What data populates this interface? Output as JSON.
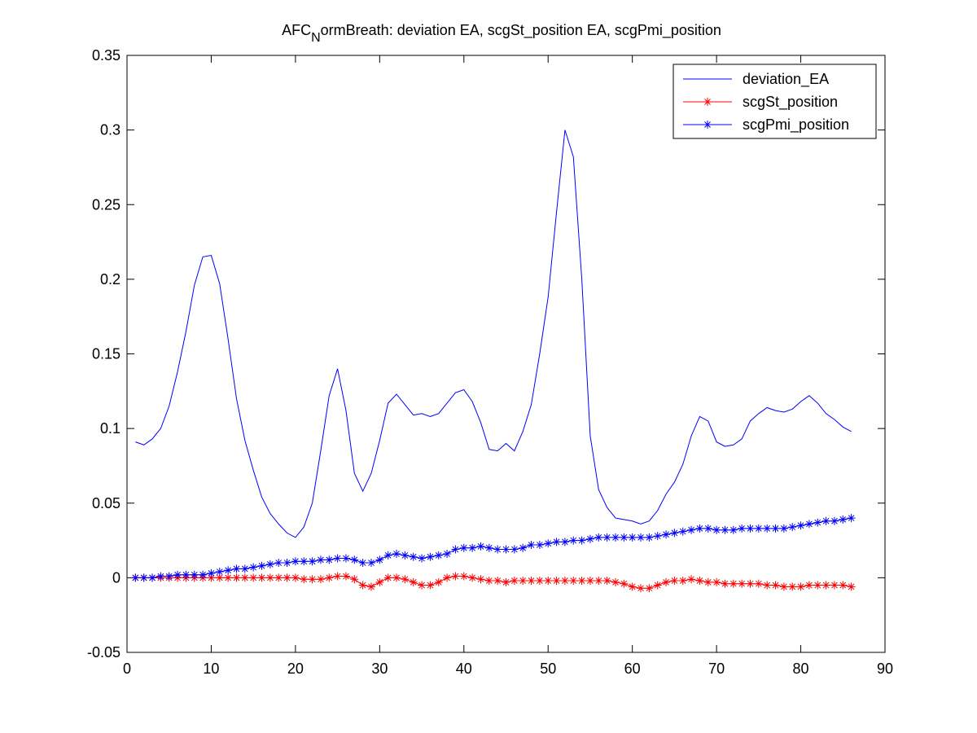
{
  "chart_data": {
    "type": "line",
    "title": [
      "AFC",
      "N",
      "ormBreath: deviation EA, scgSt_position EA, scgPmi_position"
    ],
    "x": [
      1,
      2,
      3,
      4,
      5,
      6,
      7,
      8,
      9,
      10,
      11,
      12,
      13,
      14,
      15,
      16,
      17,
      18,
      19,
      20,
      21,
      22,
      23,
      24,
      25,
      26,
      27,
      28,
      29,
      30,
      31,
      32,
      33,
      34,
      35,
      36,
      37,
      38,
      39,
      40,
      41,
      42,
      43,
      44,
      45,
      46,
      47,
      48,
      49,
      50,
      51,
      52,
      53,
      54,
      55,
      56,
      57,
      58,
      59,
      60,
      61,
      62,
      63,
      64,
      65,
      66,
      67,
      68,
      69,
      70,
      71,
      72,
      73,
      74,
      75,
      76,
      77,
      78,
      79,
      80,
      81,
      82,
      83,
      84,
      85,
      86
    ],
    "series": [
      {
        "name": "deviation_EA",
        "color": "#0000ff",
        "marker": "none",
        "values": [
          0.091,
          0.089,
          0.093,
          0.1,
          0.115,
          0.138,
          0.165,
          0.196,
          0.215,
          0.216,
          0.197,
          0.16,
          0.12,
          0.092,
          0.072,
          0.054,
          0.043,
          0.036,
          0.03,
          0.027,
          0.034,
          0.05,
          0.085,
          0.122,
          0.14,
          0.112,
          0.07,
          0.058,
          0.07,
          0.092,
          0.117,
          0.123,
          0.116,
          0.109,
          0.11,
          0.108,
          0.11,
          0.117,
          0.124,
          0.126,
          0.118,
          0.104,
          0.086,
          0.085,
          0.09,
          0.085,
          0.098,
          0.116,
          0.15,
          0.188,
          0.245,
          0.3,
          0.282,
          0.2,
          0.095,
          0.059,
          0.047,
          0.04,
          0.039,
          0.038,
          0.036,
          0.038,
          0.045,
          0.056,
          0.064,
          0.076,
          0.095,
          0.108,
          0.105,
          0.091,
          0.088,
          0.089,
          0.093,
          0.105,
          0.11,
          0.114,
          0.112,
          0.111,
          0.113,
          0.118,
          0.122,
          0.117,
          0.11,
          0.106,
          0.101,
          0.098
        ]
      },
      {
        "name": "scgSt_position",
        "color": "#ff0000",
        "marker": "star",
        "values": [
          0,
          0,
          0,
          0,
          0,
          0,
          0,
          0,
          0,
          0,
          0,
          0,
          0,
          0,
          0,
          0,
          0,
          0,
          0,
          0,
          -0.001,
          -0.001,
          -0.001,
          0,
          0.001,
          0.001,
          -0.001,
          -0.005,
          -0.006,
          -0.003,
          0,
          0,
          -0.001,
          -0.003,
          -0.005,
          -0.005,
          -0.003,
          0,
          0.001,
          0.001,
          0,
          -0.001,
          -0.002,
          -0.002,
          -0.003,
          -0.002,
          -0.002,
          -0.002,
          -0.002,
          -0.002,
          -0.002,
          -0.002,
          -0.002,
          -0.002,
          -0.002,
          -0.002,
          -0.002,
          -0.003,
          -0.004,
          -0.006,
          -0.007,
          -0.007,
          -0.005,
          -0.003,
          -0.002,
          -0.002,
          -0.001,
          -0.002,
          -0.003,
          -0.003,
          -0.004,
          -0.004,
          -0.004,
          -0.004,
          -0.004,
          -0.005,
          -0.005,
          -0.006,
          -0.006,
          -0.006,
          -0.005,
          -0.005,
          -0.005,
          -0.005,
          -0.005,
          -0.006
        ]
      },
      {
        "name": "scgPmi_position",
        "color": "#0000ff",
        "marker": "star",
        "values": [
          0,
          0,
          0,
          0.001,
          0.001,
          0.002,
          0.002,
          0.002,
          0.002,
          0.003,
          0.004,
          0.005,
          0.006,
          0.006,
          0.007,
          0.008,
          0.009,
          0.01,
          0.01,
          0.011,
          0.011,
          0.011,
          0.012,
          0.012,
          0.013,
          0.013,
          0.012,
          0.01,
          0.01,
          0.012,
          0.015,
          0.016,
          0.015,
          0.014,
          0.013,
          0.014,
          0.015,
          0.016,
          0.019,
          0.02,
          0.02,
          0.021,
          0.02,
          0.019,
          0.019,
          0.019,
          0.02,
          0.022,
          0.022,
          0.023,
          0.024,
          0.024,
          0.025,
          0.025,
          0.026,
          0.027,
          0.027,
          0.027,
          0.027,
          0.027,
          0.027,
          0.027,
          0.028,
          0.029,
          0.03,
          0.031,
          0.032,
          0.033,
          0.033,
          0.032,
          0.032,
          0.032,
          0.033,
          0.033,
          0.033,
          0.033,
          0.033,
          0.033,
          0.034,
          0.035,
          0.036,
          0.037,
          0.038,
          0.038,
          0.039,
          0.04
        ]
      }
    ],
    "xlim": [
      0,
      90
    ],
    "xticks": [
      0,
      10,
      20,
      30,
      40,
      50,
      60,
      70,
      80,
      90
    ],
    "ylim": [
      -0.05,
      0.35
    ],
    "yticks": [
      -0.05,
      0,
      0.05,
      0.1,
      0.15,
      0.2,
      0.25,
      0.3,
      0.35
    ],
    "grid": false,
    "legend": "northeast"
  }
}
